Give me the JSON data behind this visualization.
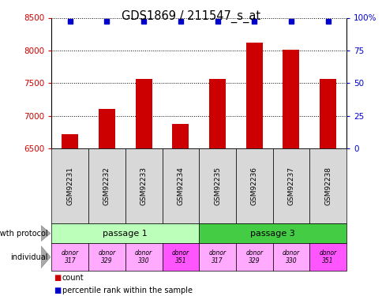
{
  "title": "GDS1869 / 211547_s_at",
  "samples": [
    "GSM92231",
    "GSM92232",
    "GSM92233",
    "GSM92234",
    "GSM92235",
    "GSM92236",
    "GSM92237",
    "GSM92238"
  ],
  "counts": [
    6720,
    7100,
    7560,
    6870,
    7560,
    8120,
    8010,
    7560
  ],
  "percentile_rank": 97,
  "ymin": 6500,
  "ymax": 8500,
  "yticks": [
    6500,
    7000,
    7500,
    8000,
    8500
  ],
  "right_yticks": [
    0,
    25,
    50,
    75,
    100
  ],
  "bar_color": "#cc0000",
  "dot_color": "#0000cc",
  "growth_protocol_groups": [
    {
      "label": "passage 1",
      "start": 0,
      "end": 4,
      "color": "#bbffbb"
    },
    {
      "label": "passage 3",
      "start": 4,
      "end": 8,
      "color": "#44cc44"
    }
  ],
  "individuals": [
    {
      "label": "donor\n317",
      "color": "#ffaaff"
    },
    {
      "label": "donor\n329",
      "color": "#ffaaff"
    },
    {
      "label": "donor\n330",
      "color": "#ffaaff"
    },
    {
      "label": "donor\n351",
      "color": "#ff55ff"
    },
    {
      "label": "donor\n317",
      "color": "#ffaaff"
    },
    {
      "label": "donor\n329",
      "color": "#ffaaff"
    },
    {
      "label": "donor\n330",
      "color": "#ffaaff"
    },
    {
      "label": "donor\n351",
      "color": "#ff55ff"
    }
  ],
  "left_axis_color": "#cc0000",
  "right_axis_color": "#0000cc",
  "legend_count_color": "#cc0000",
  "legend_dot_color": "#0000cc",
  "sample_row_color": "#d8d8d8",
  "left_label_color": "#888888"
}
